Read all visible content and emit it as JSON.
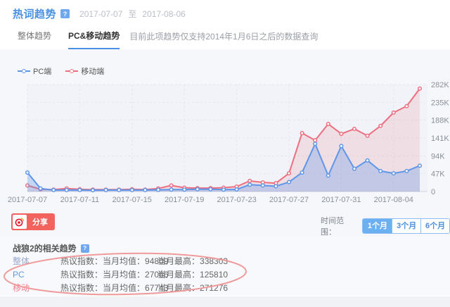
{
  "header": {
    "title": "热词趋势",
    "info_icon": "?",
    "date_start": "2017-07-07",
    "date_separator": "至",
    "date_end": "2017-08-06"
  },
  "tabs": {
    "items": [
      {
        "label": "整体趋势",
        "active": false
      },
      {
        "label": "PC&移动趋势",
        "active": true
      }
    ],
    "note": "目前此项趋势仅支持2014年1月6日之后的数据查询"
  },
  "legend": [
    {
      "label": "PC端",
      "color": "#5e96e8"
    },
    {
      "label": "移动端",
      "color": "#ec6f80"
    }
  ],
  "chart_data": {
    "type": "line",
    "title": "",
    "x": [
      "2017-07-07",
      "2017-07-08",
      "2017-07-09",
      "2017-07-10",
      "2017-07-11",
      "2017-07-12",
      "2017-07-13",
      "2017-07-14",
      "2017-07-15",
      "2017-07-16",
      "2017-07-17",
      "2017-07-18",
      "2017-07-19",
      "2017-07-20",
      "2017-07-21",
      "2017-07-22",
      "2017-07-23",
      "2017-07-24",
      "2017-07-25",
      "2017-07-26",
      "2017-07-27",
      "2017-07-28",
      "2017-07-29",
      "2017-07-30",
      "2017-07-31",
      "2017-08-01",
      "2017-08-02",
      "2017-08-03",
      "2017-08-04",
      "2017-08-05",
      "2017-08-06"
    ],
    "series": [
      {
        "name": "移动端",
        "color": "#ec6f80",
        "fill": "rgba(236,111,128,0.16)",
        "values": [
          16000,
          6000,
          5000,
          8000,
          6000,
          5000,
          5000,
          5000,
          6000,
          5000,
          8000,
          16000,
          10000,
          9000,
          9000,
          10000,
          13000,
          28000,
          24000,
          22000,
          48000,
          154000,
          135000,
          178000,
          152000,
          165000,
          147000,
          173000,
          208000,
          225000,
          271276
        ]
      },
      {
        "name": "PC端",
        "color": "#5e96e8",
        "fill": "rgba(94,150,232,0.30)",
        "values": [
          50000,
          8000,
          4000,
          4000,
          4000,
          3500,
          4000,
          4000,
          4000,
          4000,
          4500,
          5000,
          5000,
          6000,
          6000,
          5000,
          5500,
          18000,
          16000,
          14000,
          25000,
          50000,
          125810,
          42000,
          120000,
          60000,
          82000,
          54000,
          48000,
          54000,
          68000
        ]
      }
    ],
    "x_tick_labels": [
      "2017-07-07",
      "2017-07-11",
      "2017-07-15",
      "2017-07-19",
      "2017-07-23",
      "2017-07-27",
      "2017-07-31",
      "2017-08-04"
    ],
    "x_tick_step_days": 4,
    "y_ticks": [
      "0",
      "47K",
      "94K",
      "141K",
      "188K",
      "235K",
      "282K"
    ],
    "ylim": [
      0,
      282000
    ],
    "grid": true,
    "legend_position": "top-left"
  },
  "share": {
    "label": "分享",
    "icon": "weibo"
  },
  "time_range": {
    "label": "时间范围：",
    "options": [
      {
        "label": "1个月",
        "active": true
      },
      {
        "label": "3个月",
        "active": false
      },
      {
        "label": "6个月",
        "active": false
      }
    ]
  },
  "related": {
    "title": "战狼2的相关趋势",
    "info_icon": "?",
    "rows": [
      {
        "name": "整体",
        "metric_label": "热议指数：当月均值：",
        "metric_value": "94809",
        "max_label": "当月最高：",
        "max_value": "338303"
      },
      {
        "name": "PC",
        "metric_label": "热议指数：当月均值：",
        "metric_value": "27066",
        "max_label": "当月最高：",
        "max_value": "125810"
      },
      {
        "name": "移动",
        "metric_label": "热议指数：当月均值：",
        "metric_value": "67743",
        "max_label": "当月最高：",
        "max_value": "271276"
      }
    ]
  },
  "annotation": {
    "shape": "ellipse",
    "color": "#f09a9a"
  }
}
